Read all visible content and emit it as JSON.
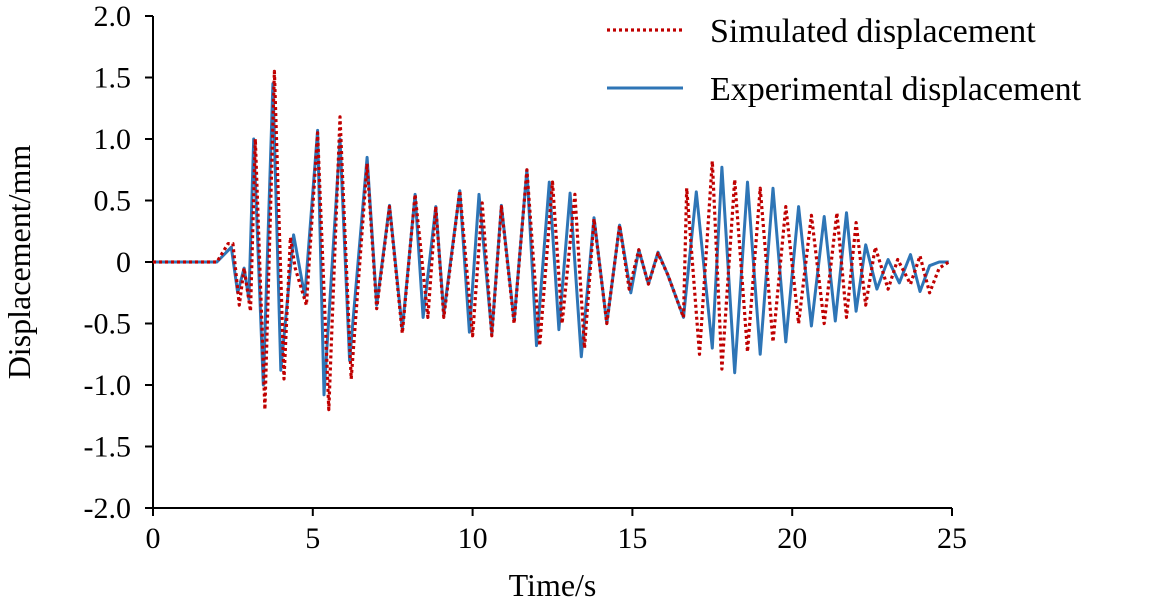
{
  "chart_data": {
    "type": "line",
    "title": "",
    "xlabel": "Time/s",
    "ylabel": "Displacement/mm",
    "xlim": [
      0,
      25
    ],
    "ylim": [
      -2.0,
      2.0
    ],
    "x_ticks": [
      0,
      5,
      10,
      15,
      20,
      25
    ],
    "x_tick_labels": [
      "0",
      "5",
      "10",
      "15",
      "20",
      "25"
    ],
    "y_ticks": [
      2.0,
      1.5,
      1.0,
      0.5,
      0,
      -0.5,
      -1.0,
      -1.5,
      -2.0
    ],
    "y_tick_labels": [
      "2.0",
      "1.5",
      "1.0",
      "0.5",
      "0",
      "-0.5",
      "-1.0",
      "-1.5",
      "-2.0"
    ],
    "grid": false,
    "legend_position": "top-right",
    "series": [
      {
        "name": "Simulated displacement",
        "color": "#c00000",
        "style": "dotted",
        "x": [
          0,
          2.0,
          2.35,
          2.5,
          2.7,
          2.85,
          3.05,
          3.2,
          3.5,
          3.8,
          4.1,
          4.3,
          4.45,
          4.8,
          5.15,
          5.5,
          5.85,
          6.2,
          6.7,
          7.0,
          7.4,
          7.8,
          8.2,
          8.6,
          8.85,
          9.1,
          9.6,
          10.0,
          10.3,
          10.6,
          10.9,
          11.3,
          11.7,
          12.1,
          12.5,
          12.8,
          13.2,
          13.5,
          13.8,
          14.2,
          14.6,
          14.9,
          15.2,
          15.5,
          15.8,
          16.1,
          16.6,
          16.7,
          17.1,
          17.5,
          17.8,
          18.2,
          18.6,
          19.0,
          19.4,
          19.8,
          20.2,
          20.6,
          21.0,
          21.4,
          21.7,
          22.0,
          22.3,
          22.6,
          23.0,
          23.3,
          23.7,
          24.0,
          24.3,
          24.6,
          24.9
        ],
        "y": [
          0,
          0,
          0.15,
          0.15,
          -0.35,
          -0.05,
          -0.4,
          1.0,
          -1.2,
          1.55,
          -0.95,
          0.2,
          -0.05,
          -0.35,
          1.05,
          -1.2,
          1.18,
          -0.95,
          0.8,
          -0.38,
          0.45,
          -0.58,
          0.55,
          -0.45,
          0.45,
          -0.45,
          0.58,
          -0.6,
          0.48,
          -0.6,
          0.45,
          -0.5,
          0.75,
          -0.68,
          0.65,
          -0.5,
          0.55,
          -0.7,
          0.35,
          -0.5,
          0.3,
          -0.22,
          0.1,
          -0.18,
          0.07,
          -0.1,
          -0.45,
          0.6,
          -0.75,
          0.82,
          -0.87,
          0.67,
          -0.73,
          0.6,
          -0.65,
          0.45,
          -0.5,
          0.38,
          -0.5,
          0.4,
          -0.45,
          0.32,
          -0.35,
          0.12,
          -0.22,
          0.02,
          -0.18,
          0.05,
          -0.25,
          -0.05,
          0
        ],
        "markers": [
          {
            "i": 7
          },
          {
            "i": 9
          }
        ]
      },
      {
        "name": "Experimental displacement",
        "color": "#2e75b6",
        "style": "solid",
        "x": [
          0,
          2.0,
          2.45,
          2.65,
          2.85,
          3.0,
          3.15,
          3.45,
          3.75,
          4.0,
          4.4,
          4.75,
          5.15,
          5.35,
          5.85,
          6.15,
          6.7,
          7.0,
          7.4,
          7.8,
          8.2,
          8.45,
          8.85,
          9.1,
          9.6,
          9.9,
          10.2,
          10.6,
          10.9,
          11.3,
          11.7,
          12.0,
          12.4,
          12.7,
          13.05,
          13.4,
          13.8,
          14.2,
          14.6,
          14.95,
          15.2,
          15.5,
          15.8,
          16.1,
          16.6,
          17.0,
          17.5,
          17.8,
          18.2,
          18.6,
          19.0,
          19.4,
          19.8,
          20.2,
          20.6,
          21.0,
          21.35,
          21.7,
          22.0,
          22.3,
          22.65,
          23.0,
          23.35,
          23.7,
          24.0,
          24.3,
          24.6,
          24.9
        ],
        "y": [
          0,
          0,
          0.12,
          -0.25,
          -0.05,
          -0.3,
          1.0,
          -1.0,
          1.45,
          -0.88,
          0.22,
          -0.28,
          1.07,
          -1.08,
          1.0,
          -0.8,
          0.85,
          -0.35,
          0.46,
          -0.55,
          0.55,
          -0.45,
          0.45,
          -0.42,
          0.58,
          -0.57,
          0.55,
          -0.58,
          0.46,
          -0.48,
          0.75,
          -0.68,
          0.65,
          -0.55,
          0.56,
          -0.77,
          0.36,
          -0.5,
          0.3,
          -0.25,
          0.1,
          -0.18,
          0.08,
          -0.1,
          -0.45,
          0.57,
          -0.7,
          0.77,
          -0.9,
          0.65,
          -0.75,
          0.6,
          -0.65,
          0.45,
          -0.52,
          0.37,
          -0.48,
          0.4,
          -0.4,
          0.14,
          -0.22,
          0.02,
          -0.17,
          0.06,
          -0.24,
          -0.03,
          0,
          0
        ]
      }
    ]
  }
}
